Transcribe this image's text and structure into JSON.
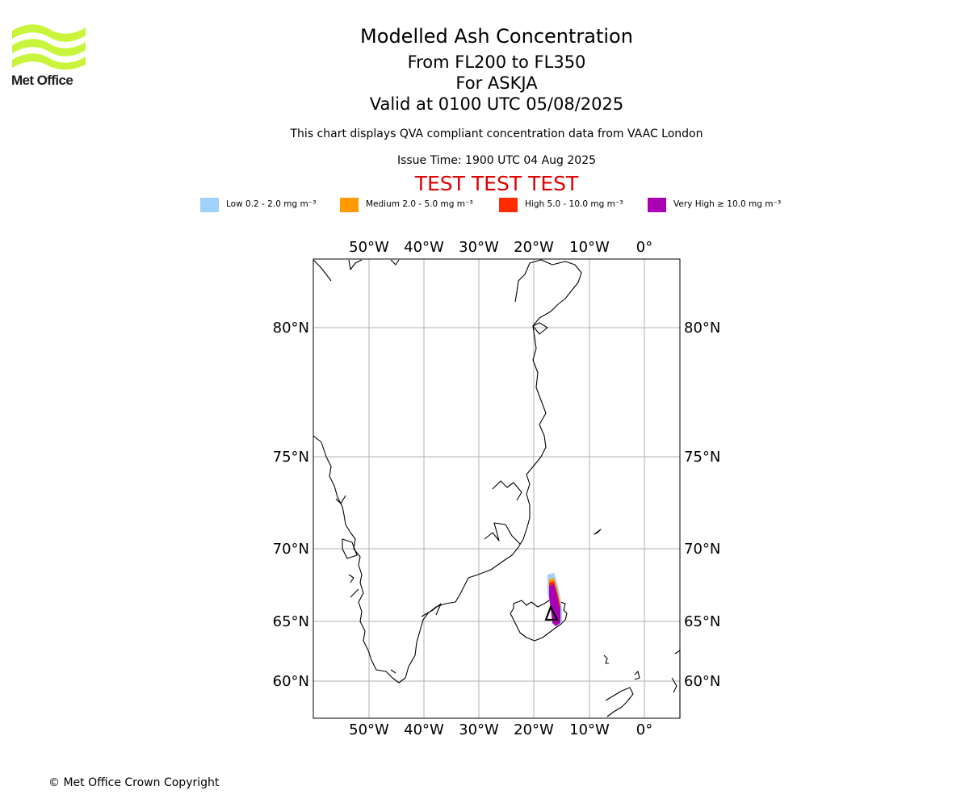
{
  "logo": {
    "name": "Met Office"
  },
  "header": {
    "title": "Modelled Ash Concentration",
    "levels": "From FL200 to FL350",
    "volcano": "For ASKJA",
    "valid": "Valid at 0100 UTC 05/08/2025",
    "description": "This chart displays QVA compliant concentration data from VAAC London",
    "issue_time": "Issue Time: 1900 UTC 04 Aug 2025",
    "test_banner": "TEST TEST TEST"
  },
  "legend": [
    {
      "label": "Low 0.2 - 2.0 mg m⁻³",
      "color": "#a0d0fc"
    },
    {
      "label": "Medium 2.0 - 5.0 mg m⁻³",
      "color": "#ff9a00"
    },
    {
      "label": "High 5.0 - 10.0 mg m⁻³",
      "color": "#ff2c00"
    },
    {
      "label": "Very High ≥ 10.0 mg m⁻³",
      "color": "#aa00b4"
    }
  ],
  "map": {
    "longitude_labels": [
      "50°W",
      "40°W",
      "30°W",
      "20°W",
      "10°W",
      "0°"
    ],
    "latitude_labels": [
      "80°N",
      "75°N",
      "70°N",
      "65°N",
      "60°N"
    ],
    "grid": true,
    "volcano_marker": "triangle"
  },
  "footer": {
    "copyright": "© Met Office Crown Copyright"
  }
}
